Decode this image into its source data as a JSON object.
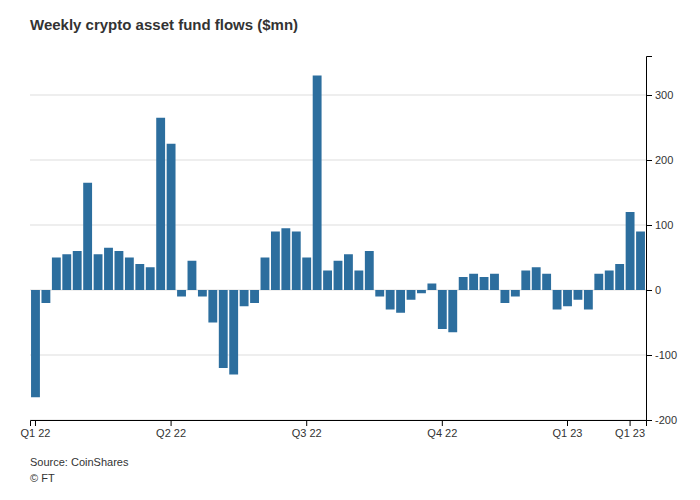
{
  "chart_data": {
    "type": "bar",
    "title": "Weekly crypto asset fund flows ($mn)",
    "annotations": [
      "Source: CoinShares",
      "© FT"
    ],
    "categories": [
      "Q1 22",
      null,
      null,
      null,
      null,
      null,
      null,
      null,
      null,
      null,
      null,
      null,
      null,
      "Q2 22",
      null,
      null,
      null,
      null,
      null,
      null,
      null,
      null,
      null,
      null,
      null,
      null,
      "Q3 22",
      null,
      null,
      null,
      null,
      null,
      null,
      null,
      null,
      null,
      null,
      null,
      null,
      "Q4 22",
      null,
      null,
      null,
      null,
      null,
      null,
      null,
      null,
      null,
      null,
      null,
      "Q1 23",
      null,
      null,
      null,
      null,
      null,
      "Q1 23",
      null
    ],
    "values": [
      -165,
      -20,
      50,
      55,
      60,
      165,
      55,
      65,
      60,
      50,
      40,
      35,
      265,
      225,
      -10,
      45,
      -10,
      -50,
      -120,
      -130,
      -25,
      -20,
      50,
      90,
      95,
      90,
      50,
      330,
      30,
      45,
      55,
      30,
      60,
      -10,
      -30,
      -35,
      -15,
      -5,
      10,
      -60,
      -65,
      20,
      25,
      20,
      25,
      -20,
      -10,
      30,
      35,
      25,
      -30,
      -25,
      -15,
      -30,
      25,
      30,
      40,
      120,
      90
    ],
    "color": "#2c6e9e",
    "ylim": [
      -200,
      360
    ],
    "yticks": [
      -200,
      -100,
      0,
      100,
      200,
      300
    ],
    "grid": true
  }
}
